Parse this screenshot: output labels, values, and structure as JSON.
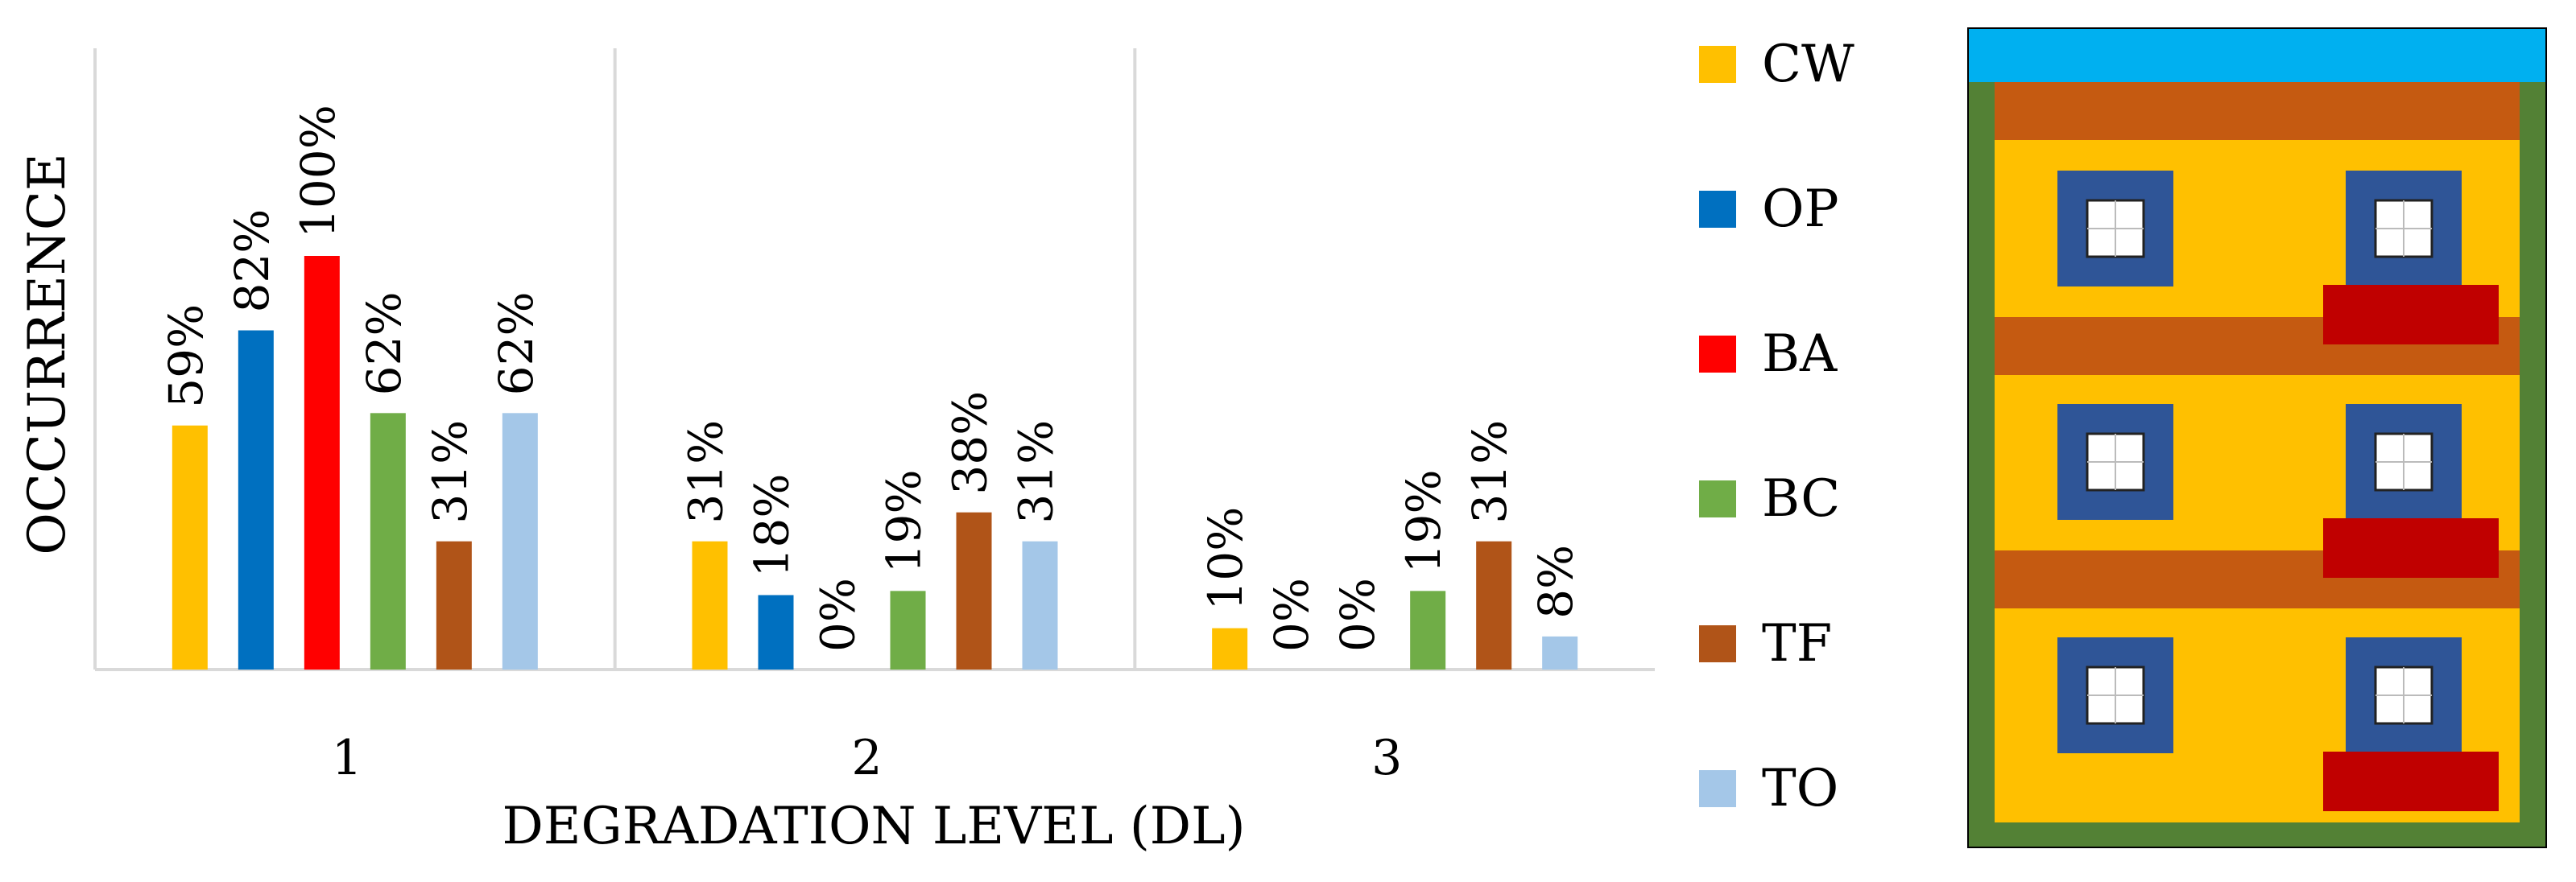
{
  "chart_data": {
    "type": "bar",
    "categories": [
      "1",
      "2",
      "3"
    ],
    "xlabel": "DEGRADATION LEVEL (DL)",
    "ylabel": "OCCURRENCE",
    "ylim": [
      0,
      145
    ],
    "grid": false,
    "legend": "right",
    "series": [
      {
        "name": "CW",
        "color": "#FFC000",
        "values": [
          59,
          31,
          10
        ],
        "labels": [
          "59%",
          "31%",
          "10%"
        ]
      },
      {
        "name": "OP",
        "color": "#0070C0",
        "values": [
          82,
          18,
          0
        ],
        "labels": [
          "82%",
          "18%",
          "0%"
        ]
      },
      {
        "name": "BA",
        "color": "#FF0000",
        "values": [
          100,
          0,
          0
        ],
        "labels": [
          "100%",
          "0%",
          "0%"
        ]
      },
      {
        "name": "BC",
        "color": "#70AD47",
        "values": [
          62,
          19,
          19
        ],
        "labels": [
          "62%",
          "19%",
          "19%"
        ]
      },
      {
        "name": "TF",
        "color": "#B05418",
        "values": [
          31,
          38,
          31
        ],
        "labels": [
          "31%",
          "38%",
          "31%"
        ]
      },
      {
        "name": "TO",
        "color": "#A4C7E8",
        "values": [
          62,
          31,
          8
        ],
        "labels": [
          "62%",
          "31%",
          "8%"
        ]
      }
    ]
  },
  "facade_colors": {
    "sky": "#00B0F0",
    "wall_frame": "#538135",
    "band": "#C55A11",
    "plaster": "#FFC000",
    "window_frame": "#2F5597",
    "glass": "#FFFFFF",
    "balcony": "#C00000"
  }
}
